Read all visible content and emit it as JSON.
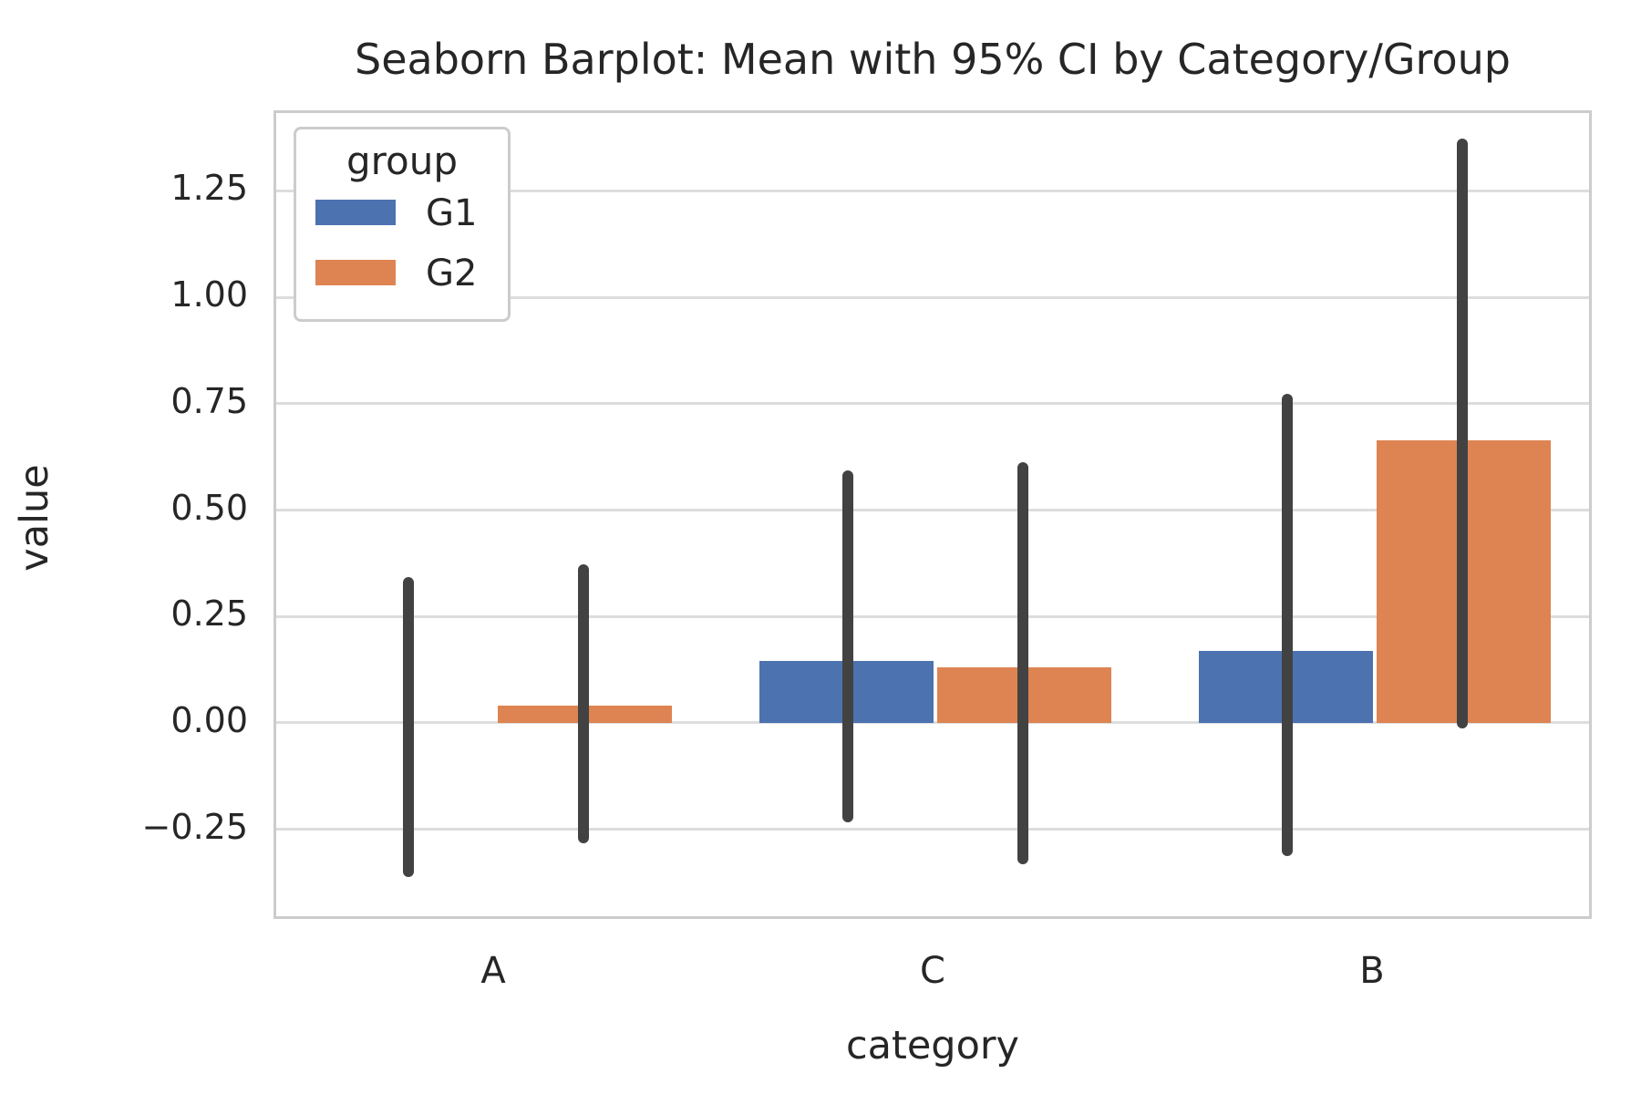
{
  "figure": {
    "title": "Seaborn Barplot: Mean with 95% CI by Category/Group",
    "xlabel": "category",
    "ylabel": "value"
  },
  "legend": {
    "title": "group",
    "entries": [
      {
        "label": "G1",
        "color": "#4C72B0"
      },
      {
        "label": "G2",
        "color": "#DD8452"
      }
    ]
  },
  "chart_data": {
    "type": "bar",
    "title": "Seaborn Barplot: Mean with 95% CI by Category/Group",
    "xlabel": "category",
    "ylabel": "value",
    "categories": [
      "A",
      "C",
      "B"
    ],
    "series": [
      {
        "name": "G1",
        "color": "#4C72B0",
        "means": [
          0.0,
          0.145,
          0.17
        ],
        "ci_low": [
          -0.35,
          -0.22,
          -0.3
        ],
        "ci_high": [
          0.33,
          0.58,
          0.76
        ]
      },
      {
        "name": "G2",
        "color": "#DD8452",
        "means": [
          0.04,
          0.13,
          0.665
        ],
        "ci_low": [
          -0.27,
          -0.32,
          0.0
        ],
        "ci_high": [
          0.36,
          0.6,
          1.36
        ]
      }
    ],
    "error_bar_meaning": "95% CI",
    "errorbar_color": "#424242",
    "grid_color": "#dddddd",
    "spine_color": "#cccccc",
    "ylim": [
      -0.467,
      1.433
    ],
    "yticks": [
      -0.25,
      0.0,
      0.25,
      0.5,
      0.75,
      1.0,
      1.25
    ],
    "grid": true,
    "legend_position": "upper left"
  }
}
